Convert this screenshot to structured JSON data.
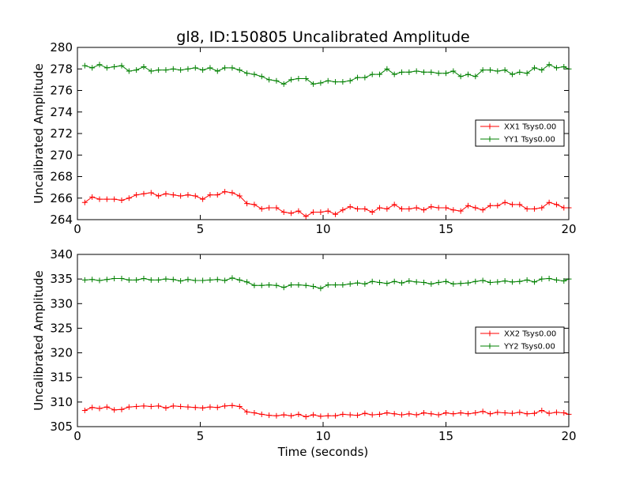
{
  "chart_data": [
    {
      "type": "line",
      "title": "gl8, ID:150805 Uncalibrated Amplitude",
      "xlabel": "",
      "ylabel": "Uncalibrated Amplitude",
      "xlim": [
        0,
        20
      ],
      "ylim": [
        264,
        280
      ],
      "xticks": [
        "0",
        "5",
        "10",
        "15",
        "20"
      ],
      "yticks": [
        "264",
        "266",
        "268",
        "270",
        "272",
        "274",
        "276",
        "278",
        "280"
      ],
      "legend_position": "center-right",
      "grid": false,
      "x": [
        0.3,
        0.6,
        0.9,
        1.2,
        1.5,
        1.8,
        2.1,
        2.4,
        2.7,
        3.0,
        3.3,
        3.6,
        3.9,
        4.2,
        4.5,
        4.8,
        5.1,
        5.4,
        5.7,
        6.0,
        6.3,
        6.6,
        6.9,
        7.2,
        7.5,
        7.8,
        8.1,
        8.4,
        8.7,
        9.0,
        9.3,
        9.6,
        9.9,
        10.2,
        10.5,
        10.8,
        11.1,
        11.4,
        11.7,
        12.0,
        12.3,
        12.6,
        12.9,
        13.2,
        13.5,
        13.8,
        14.1,
        14.4,
        14.7,
        15.0,
        15.3,
        15.6,
        15.9,
        16.2,
        16.5,
        16.8,
        17.1,
        17.4,
        17.7,
        18.0,
        18.3,
        18.6,
        18.9,
        19.2,
        19.5,
        19.8
      ],
      "series": [
        {
          "name": "XX1 Tsys0.00",
          "color": "#ff0000",
          "values": [
            265.6,
            266.1,
            265.9,
            265.9,
            265.9,
            265.8,
            266.0,
            266.3,
            266.4,
            266.5,
            266.2,
            266.4,
            266.3,
            266.2,
            266.3,
            266.2,
            265.9,
            266.3,
            266.3,
            266.6,
            266.5,
            266.2,
            265.5,
            265.4,
            265.0,
            265.1,
            265.1,
            264.7,
            264.6,
            264.8,
            264.3,
            264.7,
            264.7,
            264.8,
            264.5,
            264.9,
            265.2,
            265.0,
            265.0,
            264.7,
            265.1,
            265.0,
            265.4,
            265.0,
            265.0,
            265.1,
            264.9,
            265.2,
            265.1,
            265.1,
            264.9,
            264.8,
            265.3,
            265.1,
            264.9,
            265.3,
            265.3,
            265.6,
            265.4,
            265.4,
            265.0,
            265.0,
            265.1,
            265.6,
            265.4,
            265.1
          ],
          "values_end": 265.1
        },
        {
          "name": "YY1 Tsys0.00",
          "color": "#008000",
          "values": [
            278.3,
            278.1,
            278.4,
            278.1,
            278.2,
            278.3,
            277.8,
            277.9,
            278.2,
            277.8,
            277.9,
            277.9,
            278.0,
            277.9,
            278.0,
            278.1,
            277.9,
            278.1,
            277.8,
            278.1,
            278.1,
            277.9,
            277.6,
            277.5,
            277.3,
            277.0,
            276.9,
            276.6,
            277.0,
            277.1,
            277.1,
            276.6,
            276.7,
            276.9,
            276.8,
            276.8,
            276.9,
            277.2,
            277.2,
            277.5,
            277.5,
            278.0,
            277.5,
            277.7,
            277.7,
            277.8,
            277.7,
            277.7,
            277.6,
            277.6,
            277.8,
            277.3,
            277.5,
            277.3,
            277.9,
            277.9,
            277.8,
            277.9,
            277.5,
            277.7,
            277.6,
            278.1,
            277.9,
            278.4,
            278.1,
            278.2
          ],
          "values_end": 278.0
        }
      ]
    },
    {
      "type": "line",
      "title": "",
      "xlabel": "Time (seconds)",
      "ylabel": "Uncalibrated Amplitude",
      "xlim": [
        0,
        20
      ],
      "ylim": [
        305,
        340
      ],
      "xticks": [
        "0",
        "5",
        "10",
        "15",
        "20"
      ],
      "yticks": [
        "305",
        "310",
        "315",
        "320",
        "325",
        "330",
        "335",
        "340"
      ],
      "legend_position": "center-right",
      "grid": false,
      "x": [
        0.3,
        0.6,
        0.9,
        1.2,
        1.5,
        1.8,
        2.1,
        2.4,
        2.7,
        3.0,
        3.3,
        3.6,
        3.9,
        4.2,
        4.5,
        4.8,
        5.1,
        5.4,
        5.7,
        6.0,
        6.3,
        6.6,
        6.9,
        7.2,
        7.5,
        7.8,
        8.1,
        8.4,
        8.7,
        9.0,
        9.3,
        9.6,
        9.9,
        10.2,
        10.5,
        10.8,
        11.1,
        11.4,
        11.7,
        12.0,
        12.3,
        12.6,
        12.9,
        13.2,
        13.5,
        13.8,
        14.1,
        14.4,
        14.7,
        15.0,
        15.3,
        15.6,
        15.9,
        16.2,
        16.5,
        16.8,
        17.1,
        17.4,
        17.7,
        18.0,
        18.3,
        18.6,
        18.9,
        19.2,
        19.5,
        19.8
      ],
      "series": [
        {
          "name": "XX2 Tsys0.00",
          "color": "#ff0000",
          "values": [
            308.3,
            308.9,
            308.7,
            309.0,
            308.4,
            308.5,
            309.0,
            309.1,
            309.2,
            309.1,
            309.2,
            308.8,
            309.2,
            309.1,
            309.0,
            308.9,
            308.8,
            309.0,
            308.9,
            309.2,
            309.3,
            309.1,
            308.0,
            307.8,
            307.5,
            307.3,
            307.2,
            307.4,
            307.2,
            307.5,
            307.0,
            307.4,
            307.1,
            307.2,
            307.2,
            307.5,
            307.4,
            307.3,
            307.7,
            307.4,
            307.5,
            307.8,
            307.6,
            307.4,
            307.6,
            307.4,
            307.8,
            307.6,
            307.4,
            307.8,
            307.6,
            307.8,
            307.6,
            307.8,
            308.1,
            307.6,
            307.9,
            307.8,
            307.7,
            307.9,
            307.6,
            307.7,
            308.3,
            307.7,
            307.9,
            307.8
          ],
          "values_end": 307.5
        },
        {
          "name": "YY2 Tsys0.00",
          "color": "#008000",
          "values": [
            334.8,
            334.9,
            334.7,
            334.9,
            335.1,
            335.1,
            334.8,
            334.8,
            335.1,
            334.8,
            334.8,
            335.0,
            334.9,
            334.6,
            334.9,
            334.7,
            334.7,
            334.8,
            334.9,
            334.7,
            335.2,
            334.8,
            334.4,
            333.7,
            333.7,
            333.8,
            333.7,
            333.3,
            333.8,
            333.8,
            333.7,
            333.5,
            333.1,
            333.8,
            333.8,
            333.8,
            334.0,
            334.2,
            334.0,
            334.5,
            334.3,
            334.1,
            334.5,
            334.2,
            334.6,
            334.4,
            334.3,
            334.0,
            334.3,
            334.5,
            334.0,
            334.1,
            334.2,
            334.5,
            334.7,
            334.3,
            334.4,
            334.6,
            334.4,
            334.5,
            334.8,
            334.4,
            335.0,
            335.1,
            334.8,
            334.6
          ],
          "values_end": 335.0
        }
      ]
    }
  ]
}
